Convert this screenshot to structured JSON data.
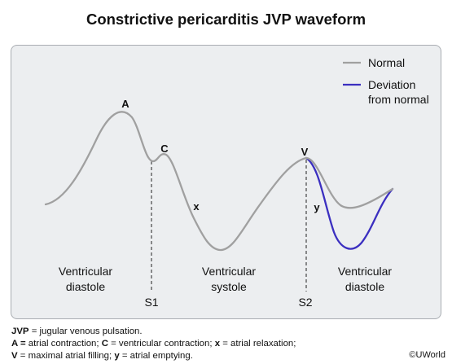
{
  "title": "Constrictive pericarditis JVP waveform",
  "legend": {
    "normal": "Normal",
    "deviation_line1": "Deviation",
    "deviation_line2": "from normal"
  },
  "waves": {
    "a": "A",
    "c": "C",
    "x": "x",
    "v": "V",
    "y": "y"
  },
  "phases": {
    "diastole1_line1": "Ventricular",
    "diastole1_line2": "diastole",
    "systole_line1": "Ventricular",
    "systole_line2": "systole",
    "diastole2_line1": "Ventricular",
    "diastole2_line2": "diastole"
  },
  "markers": {
    "s1": "S1",
    "s2": "S2"
  },
  "footer": {
    "line1_bold": "JVP",
    "line1_text": " = jugular venous pulsation.",
    "line2_bold_a": "A =",
    "line2_text_a": " atrial contraction; ",
    "line2_bold_c": "C",
    "line2_text_c": " = ventricular contraction; ",
    "line2_bold_x": "x",
    "line2_text_x": " = atrial relaxation;",
    "line3_bold_v": "V",
    "line3_text_v": " = maximal atrial filling; ",
    "line3_bold_y": "y",
    "line3_text_y": " = atrial emptying."
  },
  "credit": "©UWorld",
  "colors": {
    "normal": "#a0a0a0",
    "deviation": "#3b2fc0",
    "panel": "#eceef0"
  }
}
